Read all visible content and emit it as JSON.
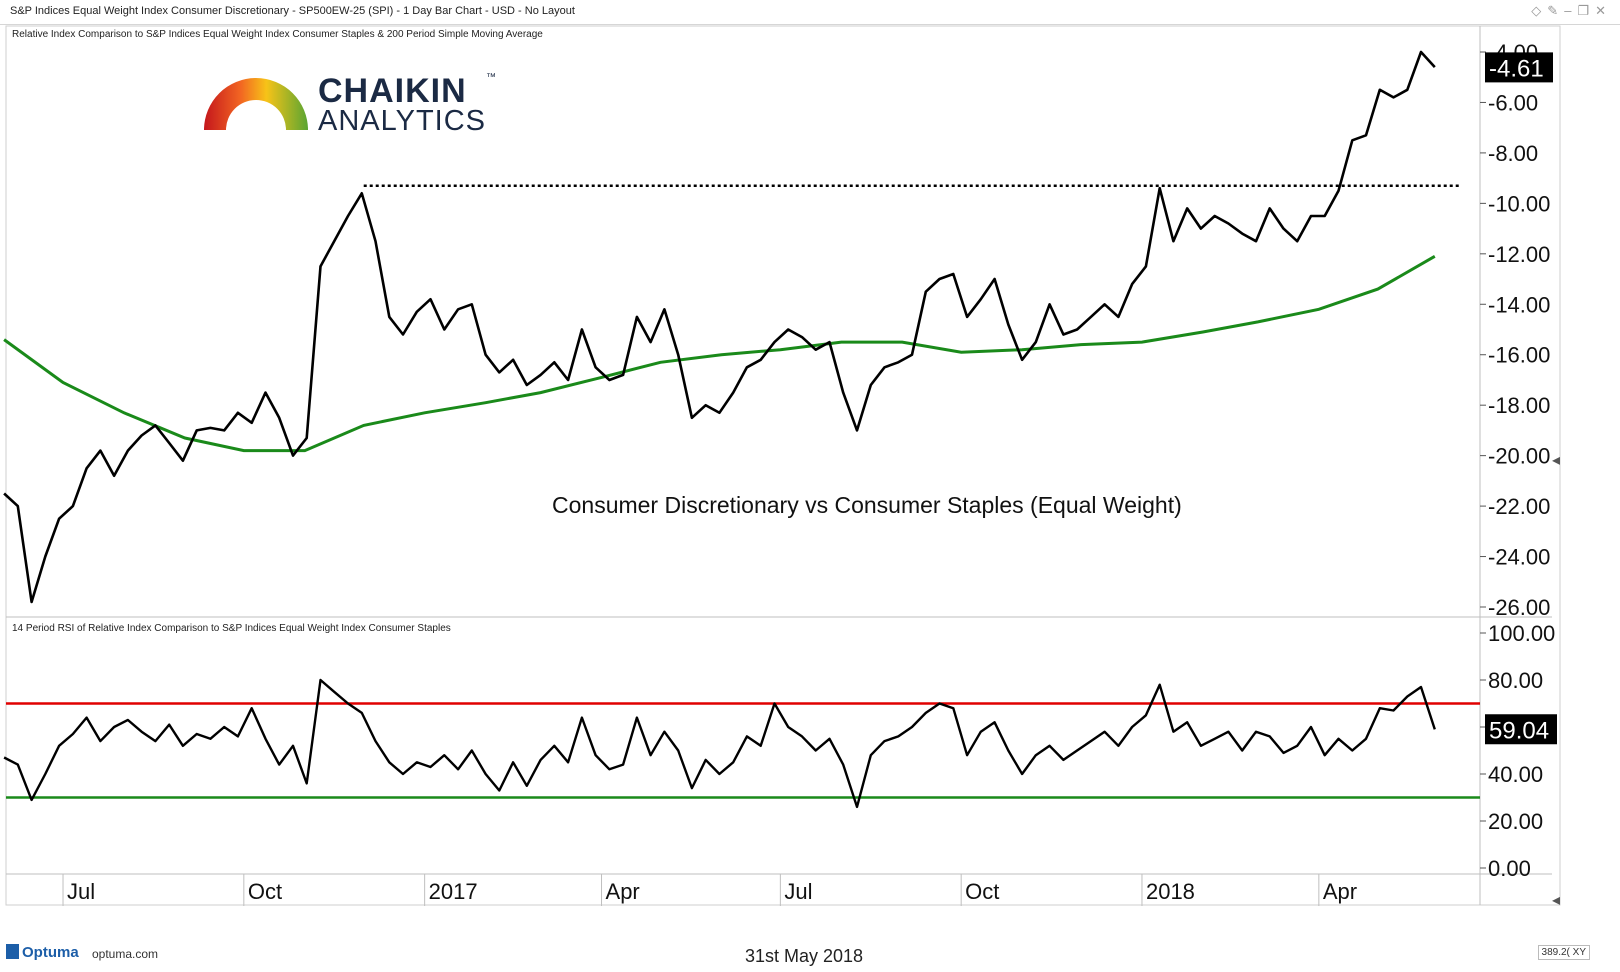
{
  "window": {
    "title": "S&P Indices Equal Weight Index Consumer Discretionary - SP500EW-25 (SPI) - 1 Day Bar Chart - USD - No Layout",
    "icons": [
      "diamond-icon",
      "pin-icon",
      "minimize-icon",
      "restore-icon",
      "close-icon"
    ]
  },
  "logo": {
    "brand_main": "CHAIKIN",
    "brand_sub": "ANALYTICS",
    "trademark": "™"
  },
  "footer": {
    "vendor": "Optuma",
    "url": "optuma.com",
    "date": "31st May 2018",
    "zoom": "389.2(",
    "xy": "XY"
  },
  "colors": {
    "price": "#000000",
    "sma": "#1a8a1a",
    "rsi_overbought": "#e00000",
    "rsi_oversold": "#1a8a1a",
    "resistance": "#000000"
  },
  "chart_data": [
    {
      "type": "line",
      "subtitle": "Relative Index Comparison to S&P Indices Equal Weight Index Consumer Staples & 200 Period Simple Moving Average",
      "annotation": "Consumer Discretionary vs Consumer Staples (Equal Weight)",
      "last_value_label": "-4.61",
      "ylim": [
        -26,
        -4
      ],
      "yticks": [
        "-4.00",
        "-6.00",
        "-8.00",
        "-10.00",
        "-12.00",
        "-14.00",
        "-16.00",
        "-18.00",
        "-20.00",
        "-22.00",
        "-24.00",
        "-26.00"
      ],
      "resistance_level": -9.3,
      "x_tick_labels": [
        "Jul",
        "Oct",
        "2017",
        "Apr",
        "Jul",
        "Oct",
        "2018",
        "Apr"
      ],
      "series": [
        {
          "key": "relative",
          "x": [
            "2016-06-01",
            "2016-06-08",
            "2016-06-15",
            "2016-06-22",
            "2016-06-29",
            "2016-07-06",
            "2016-07-13",
            "2016-07-20",
            "2016-07-27",
            "2016-08-03",
            "2016-08-10",
            "2016-08-17",
            "2016-08-24",
            "2016-08-31",
            "2016-09-07",
            "2016-09-14",
            "2016-09-21",
            "2016-09-28",
            "2016-10-05",
            "2016-10-12",
            "2016-10-19",
            "2016-10-26",
            "2016-11-02",
            "2016-11-09",
            "2016-11-16",
            "2016-11-23",
            "2016-11-30",
            "2016-12-07",
            "2016-12-14",
            "2016-12-21",
            "2016-12-28",
            "2017-01-04",
            "2017-01-11",
            "2017-01-18",
            "2017-01-25",
            "2017-02-01",
            "2017-02-08",
            "2017-02-15",
            "2017-02-22",
            "2017-03-01",
            "2017-03-08",
            "2017-03-15",
            "2017-03-22",
            "2017-03-29",
            "2017-04-05",
            "2017-04-12",
            "2017-04-19",
            "2017-04-26",
            "2017-05-03",
            "2017-05-10",
            "2017-05-17",
            "2017-05-24",
            "2017-05-31",
            "2017-06-07",
            "2017-06-14",
            "2017-06-21",
            "2017-06-28",
            "2017-07-05",
            "2017-07-12",
            "2017-07-19",
            "2017-07-26",
            "2017-08-02",
            "2017-08-09",
            "2017-08-16",
            "2017-08-23",
            "2017-08-30",
            "2017-09-06",
            "2017-09-13",
            "2017-09-20",
            "2017-09-27",
            "2017-10-04",
            "2017-10-11",
            "2017-10-18",
            "2017-10-25",
            "2017-11-01",
            "2017-11-08",
            "2017-11-15",
            "2017-11-22",
            "2017-11-29",
            "2017-12-06",
            "2017-12-13",
            "2017-12-20",
            "2017-12-27",
            "2018-01-03",
            "2018-01-10",
            "2018-01-17",
            "2018-01-24",
            "2018-01-31",
            "2018-02-07",
            "2018-02-14",
            "2018-02-21",
            "2018-02-28",
            "2018-03-07",
            "2018-03-14",
            "2018-03-21",
            "2018-03-28",
            "2018-04-04",
            "2018-04-11",
            "2018-04-18",
            "2018-04-25",
            "2018-05-02",
            "2018-05-09",
            "2018-05-16",
            "2018-05-23",
            "2018-05-30"
          ],
          "y": [
            -21.5,
            -22.0,
            -25.8,
            -24.0,
            -22.5,
            -22.0,
            -20.5,
            -19.8,
            -20.8,
            -19.8,
            -19.2,
            -18.8,
            -19.5,
            -20.2,
            -19.0,
            -18.9,
            -19.0,
            -18.3,
            -18.7,
            -17.5,
            -18.5,
            -20.0,
            -19.3,
            -12.5,
            -11.5,
            -10.5,
            -9.6,
            -11.5,
            -14.5,
            -15.2,
            -14.3,
            -13.8,
            -15.0,
            -14.2,
            -14.0,
            -16.0,
            -16.7,
            -16.2,
            -17.2,
            -16.8,
            -16.3,
            -17.0,
            -15.0,
            -16.5,
            -17.0,
            -16.8,
            -14.5,
            -15.5,
            -14.2,
            -16.0,
            -18.5,
            -18.0,
            -18.3,
            -17.5,
            -16.5,
            -16.2,
            -15.5,
            -15.0,
            -15.3,
            -15.8,
            -15.5,
            -17.5,
            -19.0,
            -17.2,
            -16.5,
            -16.3,
            -16.0,
            -13.5,
            -13.0,
            -12.8,
            -14.5,
            -13.8,
            -13.0,
            -14.8,
            -16.2,
            -15.5,
            -14.0,
            -15.2,
            -15.0,
            -14.5,
            -14.0,
            -14.5,
            -13.2,
            -12.5,
            -9.4,
            -11.5,
            -10.2,
            -11.0,
            -10.5,
            -10.8,
            -11.2,
            -11.5,
            -10.2,
            -11.0,
            -11.5,
            -10.5,
            -10.5,
            -9.5,
            -7.5,
            -7.3,
            -5.5,
            -5.8,
            -5.5,
            -4.0,
            -4.6
          ]
        },
        {
          "key": "sma200",
          "x": [
            "2016-06-01",
            "2016-07-01",
            "2016-08-01",
            "2016-09-01",
            "2016-10-01",
            "2016-11-01",
            "2016-12-01",
            "2017-01-01",
            "2017-02-01",
            "2017-03-01",
            "2017-04-01",
            "2017-05-01",
            "2017-06-01",
            "2017-07-01",
            "2017-08-01",
            "2017-09-01",
            "2017-10-01",
            "2017-11-01",
            "2017-12-01",
            "2018-01-01",
            "2018-02-01",
            "2018-03-01",
            "2018-04-01",
            "2018-05-01",
            "2018-05-30"
          ],
          "y": [
            -15.4,
            -17.1,
            -18.3,
            -19.3,
            -19.8,
            -19.8,
            -18.8,
            -18.3,
            -17.9,
            -17.5,
            -16.9,
            -16.3,
            -16.0,
            -15.8,
            -15.5,
            -15.5,
            -15.9,
            -15.8,
            -15.6,
            -15.5,
            -15.1,
            -14.7,
            -14.2,
            -13.4,
            -12.1
          ]
        }
      ]
    },
    {
      "type": "line",
      "subtitle": "14 Period RSI of Relative Index Comparison to S&P Indices Equal Weight Index Consumer Staples",
      "last_value_label": "59.04",
      "ylim": [
        0,
        100
      ],
      "yticks": [
        "100.00",
        "80.00",
        "60.00",
        "40.00",
        "20.00",
        "0.00"
      ],
      "levels": [
        70,
        30
      ],
      "series": [
        {
          "key": "rsi14",
          "x": [
            "2016-06-01",
            "2016-06-08",
            "2016-06-15",
            "2016-06-22",
            "2016-06-29",
            "2016-07-06",
            "2016-07-13",
            "2016-07-20",
            "2016-07-27",
            "2016-08-03",
            "2016-08-10",
            "2016-08-17",
            "2016-08-24",
            "2016-08-31",
            "2016-09-07",
            "2016-09-14",
            "2016-09-21",
            "2016-09-28",
            "2016-10-05",
            "2016-10-12",
            "2016-10-19",
            "2016-10-26",
            "2016-11-02",
            "2016-11-09",
            "2016-11-16",
            "2016-11-23",
            "2016-11-30",
            "2016-12-07",
            "2016-12-14",
            "2016-12-21",
            "2016-12-28",
            "2017-01-04",
            "2017-01-11",
            "2017-01-18",
            "2017-01-25",
            "2017-02-01",
            "2017-02-08",
            "2017-02-15",
            "2017-02-22",
            "2017-03-01",
            "2017-03-08",
            "2017-03-15",
            "2017-03-22",
            "2017-03-29",
            "2017-04-05",
            "2017-04-12",
            "2017-04-19",
            "2017-04-26",
            "2017-05-03",
            "2017-05-10",
            "2017-05-17",
            "2017-05-24",
            "2017-05-31",
            "2017-06-07",
            "2017-06-14",
            "2017-06-21",
            "2017-06-28",
            "2017-07-05",
            "2017-07-12",
            "2017-07-19",
            "2017-07-26",
            "2017-08-02",
            "2017-08-09",
            "2017-08-16",
            "2017-08-23",
            "2017-08-30",
            "2017-09-06",
            "2017-09-13",
            "2017-09-20",
            "2017-09-27",
            "2017-10-04",
            "2017-10-11",
            "2017-10-18",
            "2017-10-25",
            "2017-11-01",
            "2017-11-08",
            "2017-11-15",
            "2017-11-22",
            "2017-11-29",
            "2017-12-06",
            "2017-12-13",
            "2017-12-20",
            "2017-12-27",
            "2018-01-03",
            "2018-01-10",
            "2018-01-17",
            "2018-01-24",
            "2018-01-31",
            "2018-02-07",
            "2018-02-14",
            "2018-02-21",
            "2018-02-28",
            "2018-03-07",
            "2018-03-14",
            "2018-03-21",
            "2018-03-28",
            "2018-04-04",
            "2018-04-11",
            "2018-04-18",
            "2018-04-25",
            "2018-05-02",
            "2018-05-09",
            "2018-05-16",
            "2018-05-23",
            "2018-05-30"
          ],
          "y": [
            47,
            44,
            29,
            40,
            52,
            57,
            64,
            54,
            60,
            63,
            58,
            54,
            61,
            52,
            57,
            55,
            60,
            56,
            68,
            55,
            44,
            52,
            36,
            80,
            75,
            70,
            66,
            54,
            45,
            40,
            45,
            43,
            48,
            42,
            50,
            40,
            33,
            45,
            35,
            46,
            52,
            45,
            64,
            48,
            42,
            44,
            64,
            48,
            58,
            50,
            34,
            46,
            40,
            45,
            56,
            52,
            70,
            60,
            56,
            50,
            55,
            44,
            26,
            48,
            54,
            56,
            60,
            66,
            70,
            68,
            48,
            58,
            62,
            50,
            40,
            48,
            52,
            46,
            50,
            54,
            58,
            52,
            60,
            65,
            78,
            58,
            62,
            52,
            55,
            58,
            50,
            58,
            56,
            49,
            52,
            60,
            48,
            55,
            50,
            55,
            68,
            67,
            73,
            77,
            59
          ]
        }
      ]
    }
  ]
}
